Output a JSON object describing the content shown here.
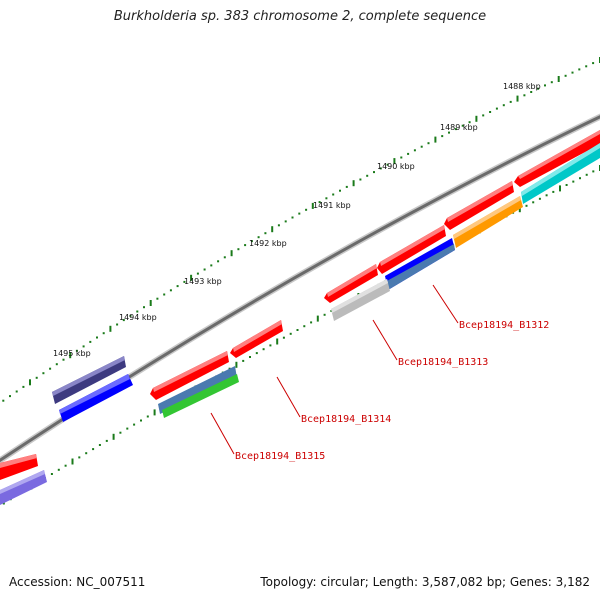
{
  "title": "Burkholderia sp. 383 chromosome 2, complete sequence",
  "ticks": [
    "1488 kbp",
    "1489 kbp",
    "1490 kbp",
    "1491 kbp",
    "1492 kbp",
    "1493 kbp",
    "1494 kbp",
    "1495 kbp"
  ],
  "gene_labels": [
    "Bcep18194_B1312",
    "Bcep18194_B1313",
    "Bcep18194_B1314",
    "Bcep18194_B1315"
  ],
  "footer": {
    "accession": "Accession: NC_007511",
    "stats": "Topology: circular; Length: 3,587,082 bp; Genes: 3,182"
  },
  "colors": {
    "backbone": "#808080",
    "tick_dots": "#1a7a1a",
    "label_red": "#cc0000",
    "red": "#ff0000",
    "blue": "#0000ff",
    "dark_slate": "#3d3a80",
    "steel_blue": "#4a7ab0",
    "green": "#33c633",
    "orange": "#ff9900",
    "cyan": "#00c8c8",
    "grey": "#bbbbbb",
    "lavender": "#7a6ae0"
  }
}
